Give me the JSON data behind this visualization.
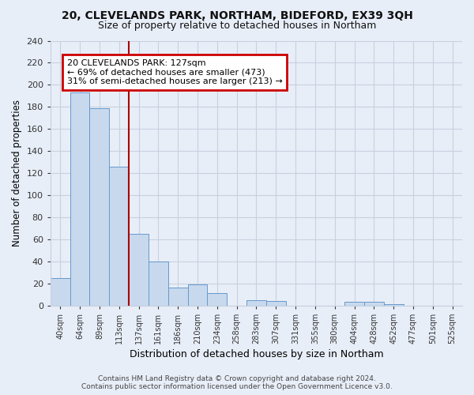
{
  "title1": "20, CLEVELANDS PARK, NORTHAM, BIDEFORD, EX39 3QH",
  "title2": "Size of property relative to detached houses in Northam",
  "xlabel": "Distribution of detached houses by size in Northam",
  "ylabel": "Number of detached properties",
  "bin_labels": [
    "40sqm",
    "64sqm",
    "89sqm",
    "113sqm",
    "137sqm",
    "161sqm",
    "186sqm",
    "210sqm",
    "234sqm",
    "258sqm",
    "283sqm",
    "307sqm",
    "331sqm",
    "355sqm",
    "380sqm",
    "404sqm",
    "428sqm",
    "452sqm",
    "477sqm",
    "501sqm",
    "525sqm"
  ],
  "bar_values": [
    25,
    193,
    179,
    126,
    65,
    40,
    16,
    19,
    11,
    0,
    5,
    4,
    0,
    0,
    0,
    3,
    3,
    1,
    0,
    0,
    0
  ],
  "bar_color": "#c8d9ee",
  "bar_edge_color": "#6699cc",
  "annotation_title": "20 CLEVELANDS PARK: 127sqm",
  "annotation_line1": "← 69% of detached houses are smaller (473)",
  "annotation_line2": "31% of semi-detached houses are larger (213) →",
  "annotation_box_facecolor": "#ffffff",
  "annotation_box_edgecolor": "#cc0000",
  "property_line_color": "#aa0000",
  "property_line_x": 3.5,
  "ylim": [
    0,
    240
  ],
  "yticks": [
    0,
    20,
    40,
    60,
    80,
    100,
    120,
    140,
    160,
    180,
    200,
    220,
    240
  ],
  "footer1": "Contains HM Land Registry data © Crown copyright and database right 2024.",
  "footer2": "Contains public sector information licensed under the Open Government Licence v3.0.",
  "bg_color": "#e8eef8",
  "plot_bg_color": "#e8eef8",
  "grid_color": "#c8d0e0",
  "title1_fontsize": 10,
  "title2_fontsize": 9
}
